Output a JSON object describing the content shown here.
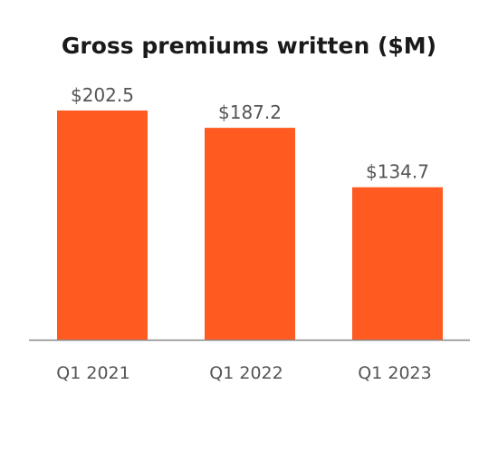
{
  "chart_data": {
    "type": "bar",
    "title": "Gross premiums written ($M)",
    "categories": [
      "Q1 2021",
      "Q1 2022",
      "Q1 2023"
    ],
    "values": [
      202.5,
      187.2,
      134.7
    ],
    "data_labels": [
      "$202.5",
      "$187.2",
      "$134.7"
    ],
    "xlabel": "",
    "ylabel": "",
    "ylim": [
      0,
      202.5
    ],
    "grid": false,
    "legend": "none",
    "colors": {
      "bar": "#ff5a1f",
      "axis": "#888888",
      "title": "#1a1a1a",
      "labels": "#555555"
    }
  }
}
